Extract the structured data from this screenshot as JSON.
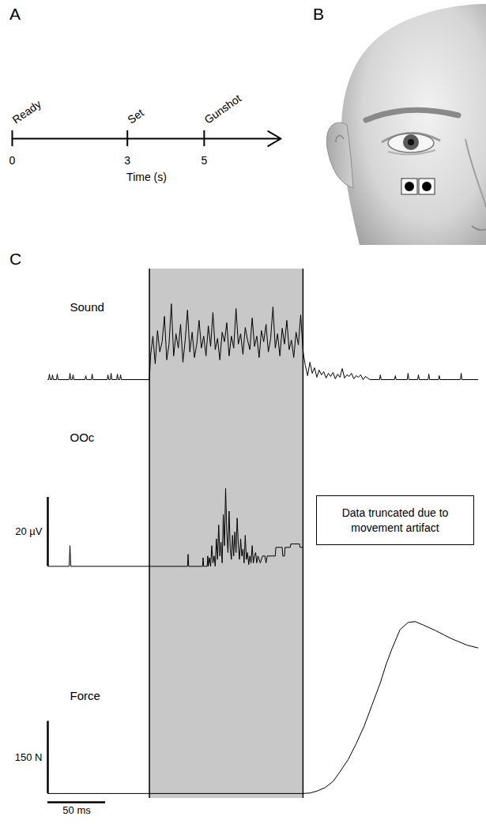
{
  "chart_data": [
    {
      "panel": "A",
      "type": "timeline",
      "x": [
        0,
        3,
        5
      ],
      "events": [
        "Ready",
        "Set",
        "Gunshot"
      ],
      "xlim": [
        0,
        7
      ],
      "xticks": [
        0,
        3,
        5
      ],
      "xlabel": "Time (s)"
    },
    {
      "panel": "B",
      "type": "illustration"
    },
    {
      "panel": "C",
      "type": "line",
      "xlim": [
        0,
        373
      ],
      "tick_labels": false,
      "shaded_interval": [
        88,
        221
      ],
      "x_scale_bar": {
        "value": 50,
        "label": "50 ms"
      },
      "annotation": "Data truncated due to movement artifact",
      "series": [
        {
          "name": "Sound",
          "color": "#000000",
          "ylim": [
            -40,
            140
          ],
          "x": [
            0,
            0.7,
            1.4,
            2.1,
            3.4,
            4.1,
            4.8,
            7.5,
            8.2,
            8.9,
            18.5,
            19.2,
            19.9,
            21.2,
            21.9,
            22.6,
            32.2,
            32.9,
            33.6,
            37.7,
            38.4,
            39.1,
            51.4,
            52.1,
            52.8,
            54.1,
            54.8,
            55.5,
            59.6,
            60.3,
            61.0,
            62.3,
            63.0,
            63.7,
            88,
            89,
            91,
            93,
            95,
            97,
            99,
            101,
            103,
            105,
            107,
            109,
            111,
            113,
            115,
            117,
            119,
            121,
            123,
            125,
            127,
            129,
            131,
            133,
            135,
            137,
            139,
            141,
            143,
            145,
            147,
            149,
            151,
            153,
            155,
            157,
            159,
            161,
            163,
            165,
            167,
            169,
            171,
            173,
            175,
            177,
            179,
            181,
            183,
            185,
            187,
            189,
            191,
            193,
            195,
            197,
            199,
            201,
            203,
            205,
            207,
            209,
            211,
            213,
            215,
            217,
            219,
            221,
            223,
            225,
            227,
            229,
            231,
            233,
            235,
            237,
            239,
            241,
            243,
            245,
            247,
            249,
            251,
            253,
            255,
            257,
            259,
            261,
            263,
            265,
            267,
            269,
            271,
            273,
            275,
            277,
            279,
            287.3,
            288,
            288.7,
            300.3,
            301,
            301.7,
            311.3,
            312,
            312.7,
            320.3,
            321,
            321.7,
            329.3,
            330,
            330.7,
            338.3,
            339,
            339.7,
            357.3,
            358,
            358.7,
            373
          ],
          "values": [
            0,
            0,
            7,
            0,
            0,
            6,
            0,
            0,
            7,
            0,
            0,
            8,
            0,
            0,
            6,
            0,
            0,
            5,
            0,
            0,
            7,
            0,
            0,
            6,
            0,
            0,
            8,
            0,
            0,
            7,
            0,
            0,
            6,
            0,
            0,
            30,
            55,
            20,
            62,
            35,
            48,
            80,
            25,
            45,
            96,
            30,
            58,
            40,
            70,
            22,
            50,
            88,
            35,
            60,
            28,
            45,
            75,
            40,
            55,
            30,
            68,
            42,
            85,
            38,
            52,
            25,
            60,
            48,
            72,
            30,
            55,
            40,
            90,
            45,
            58,
            32,
            66,
            50,
            38,
            78,
            42,
            55,
            28,
            62,
            48,
            70,
            35,
            52,
            92,
            40,
            58,
            30,
            65,
            45,
            75,
            38,
            50,
            28,
            60,
            44,
            82,
            36,
            18,
            5,
            22,
            8,
            15,
            3,
            12,
            6,
            10,
            2,
            8,
            4,
            9,
            1,
            7,
            3,
            14,
            2,
            6,
            4,
            8,
            1,
            5,
            3,
            6,
            0,
            4,
            2,
            0,
            0,
            6,
            0,
            0,
            5,
            0,
            0,
            8,
            0,
            0,
            6,
            0,
            0,
            7,
            0,
            0,
            5,
            0,
            0,
            8,
            0,
            0
          ]
        },
        {
          "name": "OOc",
          "color": "#000000",
          "ylim": [
            -10,
            45
          ],
          "scale_bar": {
            "value": 20,
            "label": "20 µV"
          },
          "x": [
            0,
            18.5,
            19.2,
            19.9,
            121,
            121.5,
            122,
            134,
            134.5,
            135,
            138,
            138.5,
            139,
            140,
            141,
            142,
            143,
            144,
            145,
            146,
            147,
            148,
            149,
            150,
            151,
            152,
            153,
            154,
            155,
            156,
            157,
            158,
            159,
            160,
            161,
            162,
            163,
            164,
            165,
            166,
            167,
            168,
            169,
            170,
            171,
            172,
            173,
            174,
            175,
            176,
            177,
            178,
            179,
            180,
            181,
            182,
            184,
            186,
            188,
            189,
            190,
            197,
            197.5,
            203,
            203.5,
            205,
            205.5,
            210,
            210.5,
            218,
            218.5,
            221
          ],
          "values": [
            0,
            0,
            6,
            0,
            0,
            3.5,
            0,
            0,
            2.5,
            0,
            0,
            3,
            0,
            2.5,
            0,
            6,
            1,
            3,
            0,
            8,
            2,
            12,
            3,
            7,
            1,
            15,
            6,
            22.6,
            10,
            4,
            16,
            5,
            2,
            9,
            3,
            10,
            4,
            14,
            6,
            2,
            8,
            3,
            5,
            1,
            9,
            2,
            4,
            0.5,
            3,
            1,
            6,
            1,
            3,
            4,
            1,
            3,
            1,
            3,
            3,
            1,
            3,
            3,
            5.5,
            5.5,
            3,
            3,
            5.5,
            5.5,
            6.5,
            6.5,
            5.5,
            5.5
          ]
        },
        {
          "name": "Force",
          "color": "#000000",
          "ylim": [
            -10,
            400
          ],
          "scale_bar": {
            "value": 150,
            "label": "150 N"
          },
          "x": [
            0,
            221,
            227,
            233,
            240,
            247,
            253,
            260,
            267,
            274,
            281,
            288,
            293,
            298,
            305,
            312,
            318,
            325,
            336,
            349,
            363,
            373
          ],
          "values": [
            0,
            0,
            1,
            5,
            12,
            25,
            45,
            70,
            103,
            140,
            185,
            230,
            268,
            300,
            340,
            355,
            357,
            350,
            338,
            322,
            308,
            302
          ]
        }
      ]
    }
  ]
}
